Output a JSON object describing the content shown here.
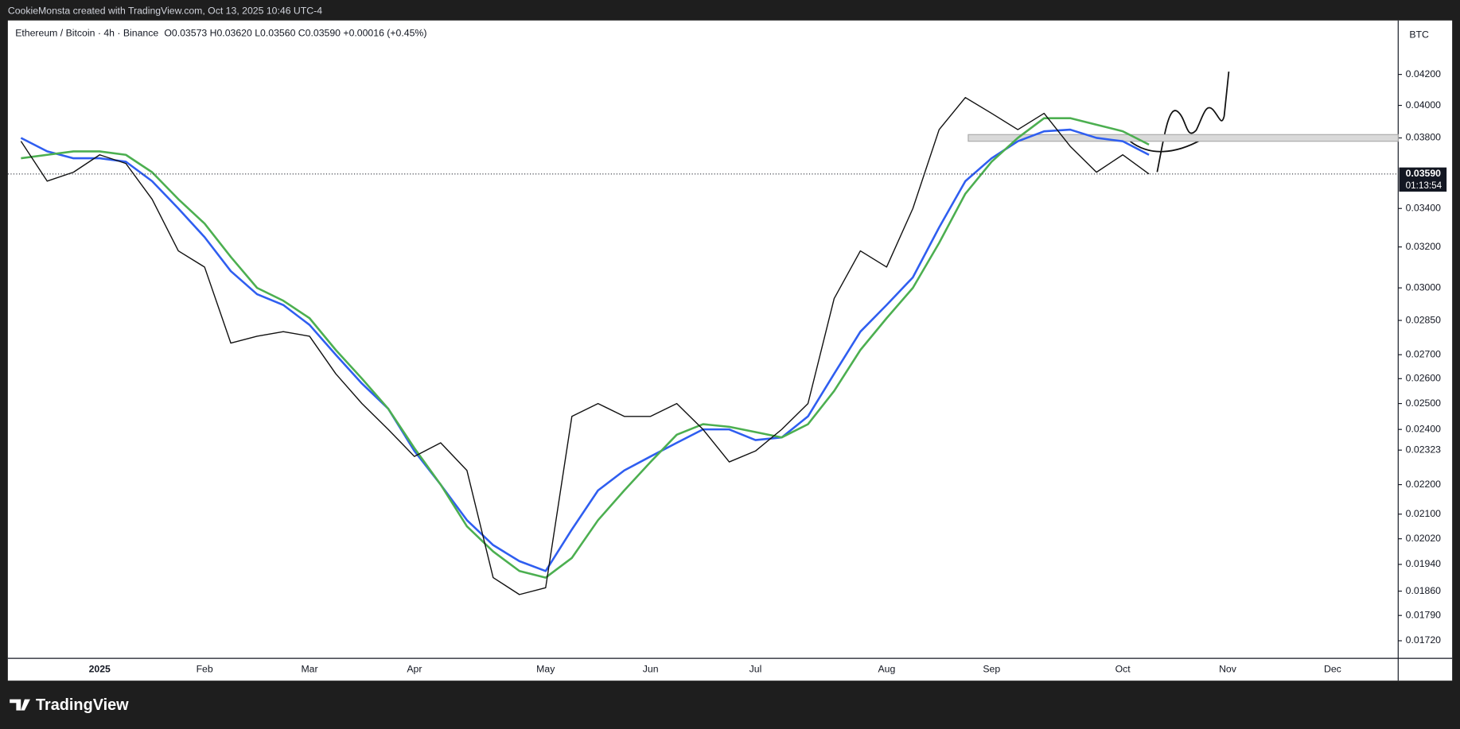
{
  "chart_data": {
    "type": "line",
    "attribution": "CookieMonsta created with TradingView.com, Oct 13, 2025 10:46 UTC-4",
    "title": "Ethereum / Bitcoin · 4h · Binance",
    "ohlc": "O0.03573 H0.03620 L0.03560 C0.03590 +0.00016 (+0.45%)",
    "y_unit": "BTC",
    "brand": "TradingView",
    "log_scale": true,
    "grid": false,
    "categories": [
      null,
      null,
      null,
      "2025",
      null,
      null,
      null,
      "Feb",
      null,
      null,
      null,
      "Mar",
      null,
      null,
      null,
      "Apr",
      null,
      null,
      null,
      null,
      "May",
      null,
      null,
      null,
      "Jun",
      null,
      null,
      null,
      "Jul",
      null,
      null,
      null,
      null,
      "Aug",
      null,
      null,
      null,
      "Sep",
      null,
      null,
      null,
      null,
      "Oct",
      null,
      null,
      null,
      "Nov",
      null,
      null,
      null,
      "Dec",
      null,
      null
    ],
    "series": [
      {
        "color": "#111111",
        "values": [
          0.0378,
          0.0355,
          0.036,
          0.037,
          0.0365,
          0.0345,
          0.0318,
          0.031,
          0.0275,
          0.0278,
          0.028,
          0.0278,
          0.0262,
          0.025,
          0.024,
          0.023,
          0.0235,
          0.0225,
          0.019,
          0.0185,
          0.0187,
          0.0245,
          0.025,
          0.0245,
          0.0245,
          0.025,
          0.024,
          0.0228,
          0.0232,
          0.024,
          0.025,
          0.0295,
          0.0318,
          0.031,
          0.034,
          0.0385,
          0.0405,
          0.0395,
          0.0385,
          0.0395,
          0.0375,
          0.036,
          0.037,
          0.0359,
          null,
          null,
          null,
          null,
          null,
          null,
          null,
          null,
          null
        ]
      },
      {
        "color": "#2f5ef0",
        "values": [
          0.038,
          0.0372,
          0.0368,
          0.0368,
          0.0366,
          0.0355,
          0.034,
          0.0325,
          0.0308,
          0.0297,
          0.0292,
          0.0283,
          0.027,
          0.0258,
          0.0248,
          0.0232,
          0.022,
          0.0208,
          0.02,
          0.0195,
          0.0192,
          0.0205,
          0.0218,
          0.0225,
          0.023,
          0.0235,
          0.024,
          0.024,
          0.0236,
          0.0237,
          0.0245,
          0.0262,
          0.028,
          0.0292,
          0.0305,
          0.033,
          0.0355,
          0.0368,
          0.0378,
          0.0384,
          0.0385,
          0.038,
          0.0378,
          0.037,
          null,
          null,
          null,
          null,
          null,
          null,
          null,
          null,
          null
        ]
      },
      {
        "color": "#4caf50",
        "values": [
          0.0368,
          0.037,
          0.0372,
          0.0372,
          0.037,
          0.036,
          0.0345,
          0.0332,
          0.0315,
          0.03,
          0.0294,
          0.0286,
          0.0272,
          0.026,
          0.0248,
          0.0233,
          0.022,
          0.0206,
          0.0198,
          0.0192,
          0.019,
          0.0196,
          0.0208,
          0.0218,
          0.0228,
          0.0238,
          0.0242,
          0.0241,
          0.0239,
          0.0237,
          0.0242,
          0.0255,
          0.0272,
          0.0286,
          0.03,
          0.0322,
          0.0348,
          0.0366,
          0.038,
          0.0392,
          0.0392,
          0.0388,
          0.0384,
          0.0376,
          null,
          null,
          null,
          null,
          null,
          null,
          null,
          null,
          null
        ]
      }
    ],
    "ylim": [
      0.01673,
      0.04573
    ],
    "yticks": [
      {
        "value": 0.042,
        "label": "0.04200"
      },
      {
        "value": 0.04,
        "label": "0.04000"
      },
      {
        "value": 0.038,
        "label": "0.03800"
      },
      {
        "value": 0.034,
        "label": "0.03400"
      },
      {
        "value": 0.032,
        "label": "0.03200"
      },
      {
        "value": 0.03,
        "label": "0.03000"
      },
      {
        "value": 0.0285,
        "label": "0.02850"
      },
      {
        "value": 0.027,
        "label": "0.02700"
      },
      {
        "value": 0.026,
        "label": "0.02600"
      },
      {
        "value": 0.025,
        "label": "0.02500"
      },
      {
        "value": 0.024,
        "label": "0.02400"
      },
      {
        "value": 0.02323,
        "label": "0.02323"
      },
      {
        "value": 0.022,
        "label": "0.02200"
      },
      {
        "value": 0.021,
        "label": "0.02100"
      },
      {
        "value": 0.0202,
        "label": "0.02020"
      },
      {
        "value": 0.0194,
        "label": "0.01940"
      },
      {
        "value": 0.0186,
        "label": "0.01860"
      },
      {
        "value": 0.0179,
        "label": "0.01790"
      },
      {
        "value": 0.0172,
        "label": "0.01720"
      }
    ],
    "zone": [
      0.0378,
      0.0382
    ],
    "last_price": {
      "value": 0.0359,
      "label": "0.03590"
    },
    "countdown": "01:13:54"
  }
}
